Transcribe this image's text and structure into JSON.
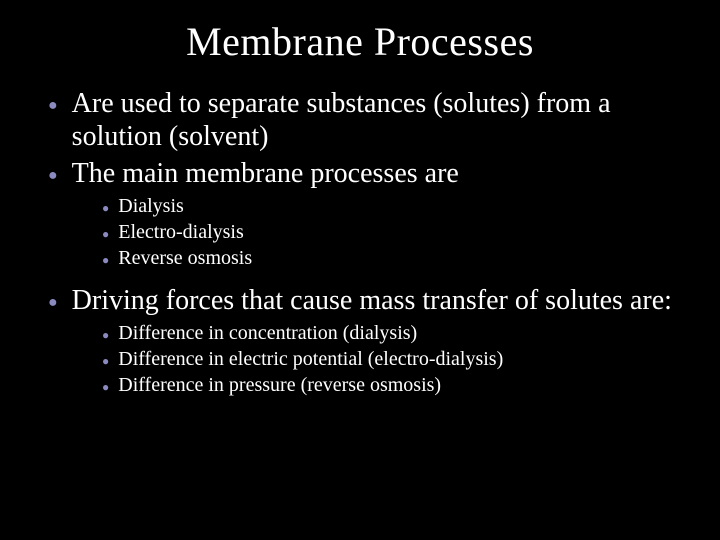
{
  "title": "Membrane Processes",
  "colors": {
    "background": "#000000",
    "text": "#ffffff",
    "bullet": "#8a8ac0"
  },
  "typography": {
    "title_fontsize": 40,
    "l1_fontsize": 28,
    "l2_fontsize": 20,
    "font_family": "Times New Roman"
  },
  "bullets": {
    "l1": [
      "Are used to separate substances (solutes) from a solution (solvent)",
      "The main membrane processes are"
    ],
    "sub1": [
      "Dialysis",
      "Electro-dialysis",
      "Reverse osmosis"
    ],
    "l1b": [
      "Driving forces that cause mass transfer of solutes are:"
    ],
    "sub2": [
      "Difference in concentration (dialysis)",
      "Difference in electric potential (electro-dialysis)",
      "Difference in pressure (reverse osmosis)"
    ]
  }
}
